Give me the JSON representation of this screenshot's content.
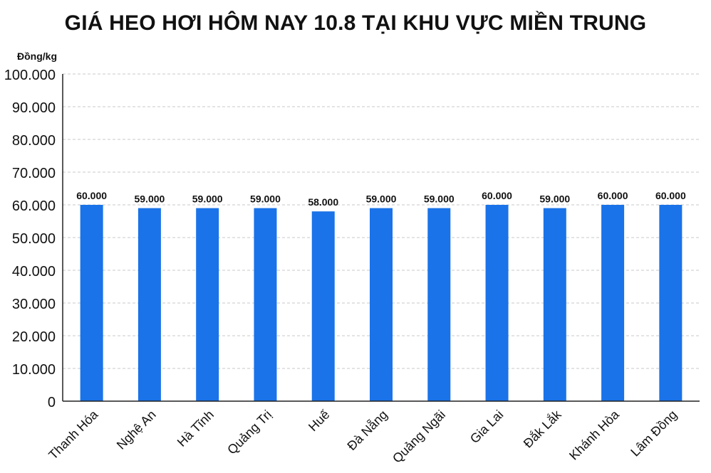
{
  "chart_data": {
    "type": "bar",
    "title": "GIÁ HEO HƠI HÔM NAY 10.8 TẠI KHU VỰC MIỀN TRUNG",
    "ylabel": "Đồng/kg",
    "xlabel": "",
    "categories": [
      "Thanh Hóa",
      "Nghệ An",
      "Hà Tĩnh",
      "Quảng Trị",
      "Huế",
      "Đà Nẵng",
      "Quảng Ngãi",
      "Gia Lai",
      "Đắk Lắk",
      "Khánh Hòa",
      "Lâm Đồng"
    ],
    "values": [
      60000,
      59000,
      59000,
      59000,
      58000,
      59000,
      59000,
      60000,
      59000,
      60000,
      60000
    ],
    "value_labels": [
      "60.000",
      "59.000",
      "59.000",
      "59.000",
      "58.000",
      "59.000",
      "59.000",
      "60.000",
      "59.000",
      "60.000",
      "60.000"
    ],
    "ylim": [
      0,
      100000
    ],
    "yticks": [
      0,
      10000,
      20000,
      30000,
      40000,
      50000,
      60000,
      70000,
      80000,
      90000,
      100000
    ],
    "ytick_labels": [
      "0",
      "10.000",
      "20.000",
      "30.000",
      "40.000",
      "50.000",
      "60.000",
      "70.000",
      "80.000",
      "90.000",
      "100.000"
    ],
    "grid": true,
    "bar_color": "#1a73e8"
  }
}
